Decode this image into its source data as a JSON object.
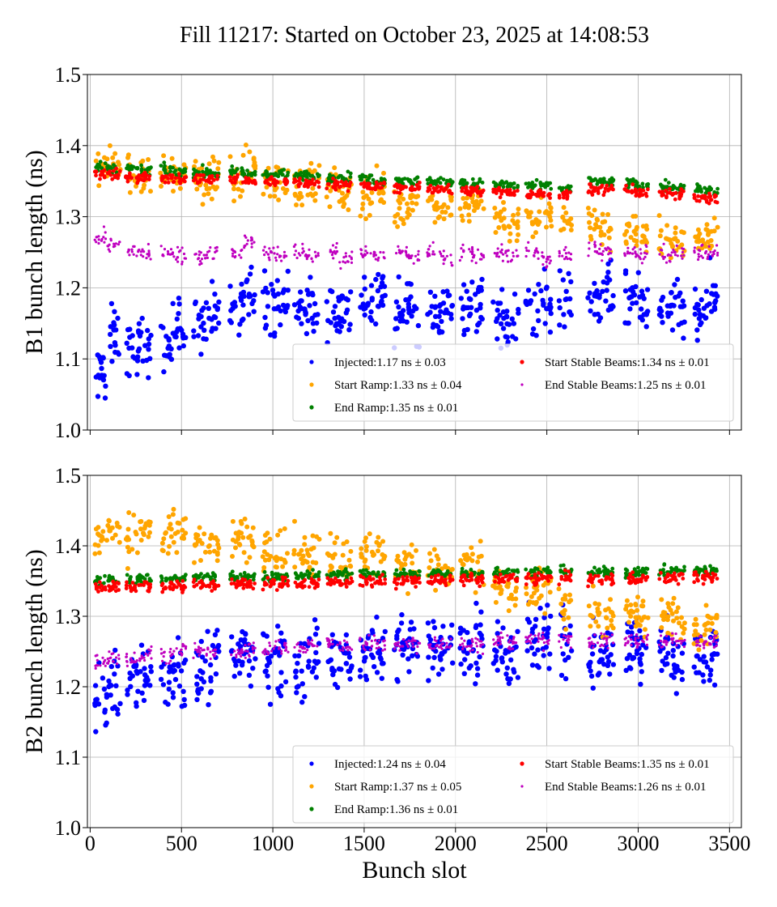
{
  "title": "Fill 11217: Started on October 23, 2025 at 14:08:53",
  "chart_data": [
    {
      "type": "scatter",
      "panel": "top",
      "xlabel": "",
      "ylabel": "B1 bunch length (ns)",
      "xlim": [
        -15,
        3565
      ],
      "ylim": [
        1.0,
        1.5
      ],
      "xticks": [
        "0",
        "500",
        "1000",
        "1500",
        "2000",
        "2500",
        "3000",
        "3500"
      ],
      "xtick_values": [
        0,
        500,
        1000,
        1500,
        2000,
        2500,
        3000,
        3500
      ],
      "yticks": [
        "1.0",
        "1.1",
        "1.2",
        "1.3",
        "1.4",
        "1.5"
      ],
      "ytick_values": [
        1.0,
        1.1,
        1.2,
        1.3,
        1.4,
        1.5
      ],
      "show_xtick_labels": false,
      "grid": true,
      "legend_position": "lower-right",
      "x": [
        60,
        130,
        230,
        300,
        420,
        490,
        600,
        670,
        800,
        870,
        980,
        1050,
        1150,
        1220,
        1330,
        1400,
        1510,
        1580,
        1700,
        1770,
        1880,
        1950,
        2060,
        2120,
        2240,
        2310,
        2420,
        2490,
        2600,
        2760,
        2830,
        2960,
        3020,
        3150,
        3220,
        3340,
        3400
      ],
      "series": [
        {
          "name": "Injected",
          "legend": "Injected:1.17 ns ± 0.03",
          "color": "#0000ff",
          "spread": 0.03,
          "y": [
            1.08,
            1.13,
            1.11,
            1.12,
            1.13,
            1.14,
            1.15,
            1.16,
            1.17,
            1.2,
            1.18,
            1.18,
            1.17,
            1.17,
            1.17,
            1.17,
            1.18,
            1.19,
            1.16,
            1.17,
            1.17,
            1.17,
            1.17,
            1.18,
            1.16,
            1.15,
            1.17,
            1.18,
            1.18,
            1.18,
            1.19,
            1.18,
            1.17,
            1.17,
            1.16,
            1.17,
            1.19
          ]
        },
        {
          "name": "Start Ramp",
          "legend": "Start Ramp:1.33 ns ± 0.04",
          "color": "#ffa500",
          "spread": 0.02,
          "y": [
            1.37,
            1.38,
            1.36,
            1.36,
            1.355,
            1.36,
            1.35,
            1.35,
            1.35,
            1.37,
            1.35,
            1.35,
            1.34,
            1.35,
            1.34,
            1.33,
            1.33,
            1.34,
            1.31,
            1.32,
            1.32,
            1.32,
            1.31,
            1.32,
            1.3,
            1.29,
            1.3,
            1.3,
            1.3,
            1.29,
            1.28,
            1.28,
            1.27,
            1.27,
            1.26,
            1.27,
            1.28
          ]
        },
        {
          "name": "End Ramp",
          "legend": "End Ramp:1.35 ns ± 0.01",
          "color": "#008000",
          "spread": 0.005,
          "y": [
            1.37,
            1.368,
            1.366,
            1.365,
            1.366,
            1.364,
            1.363,
            1.362,
            1.362,
            1.36,
            1.36,
            1.359,
            1.358,
            1.357,
            1.356,
            1.355,
            1.353,
            1.352,
            1.351,
            1.35,
            1.349,
            1.348,
            1.347,
            1.346,
            1.345,
            1.344,
            1.343,
            1.342,
            1.34,
            1.35,
            1.348,
            1.346,
            1.345,
            1.342,
            1.34,
            1.338,
            1.336
          ]
        },
        {
          "name": "Start Stable Beams",
          "legend": "Start Stable Beams:1.34 ns ± 0.01",
          "color": "#ff0000",
          "spread": 0.005,
          "y": [
            1.36,
            1.358,
            1.356,
            1.355,
            1.356,
            1.354,
            1.353,
            1.352,
            1.352,
            1.35,
            1.35,
            1.349,
            1.348,
            1.347,
            1.346,
            1.345,
            1.343,
            1.342,
            1.341,
            1.34,
            1.339,
            1.338,
            1.337,
            1.336,
            1.335,
            1.334,
            1.333,
            1.332,
            1.33,
            1.34,
            1.338,
            1.336,
            1.335,
            1.332,
            1.33,
            1.328,
            1.326
          ]
        },
        {
          "name": "End Stable Beams",
          "legend": "End Stable Beams:1.25 ns ± 0.01",
          "color": "#bf00bf",
          "spread": 0.008,
          "y": [
            1.27,
            1.26,
            1.25,
            1.25,
            1.25,
            1.245,
            1.245,
            1.25,
            1.25,
            1.265,
            1.25,
            1.245,
            1.25,
            1.245,
            1.25,
            1.24,
            1.25,
            1.245,
            1.25,
            1.245,
            1.25,
            1.24,
            1.25,
            1.245,
            1.25,
            1.245,
            1.25,
            1.24,
            1.245,
            1.255,
            1.25,
            1.25,
            1.245,
            1.245,
            1.25,
            1.25,
            1.25
          ]
        }
      ]
    },
    {
      "type": "scatter",
      "panel": "bottom",
      "xlabel": "Bunch slot",
      "ylabel": "B2 bunch length (ns)",
      "xlim": [
        -15,
        3565
      ],
      "ylim": [
        1.0,
        1.5
      ],
      "xticks": [
        "0",
        "500",
        "1000",
        "1500",
        "2000",
        "2500",
        "3000",
        "3500"
      ],
      "xtick_values": [
        0,
        500,
        1000,
        1500,
        2000,
        2500,
        3000,
        3500
      ],
      "yticks": [
        "1.0",
        "1.1",
        "1.2",
        "1.3",
        "1.4",
        "1.5"
      ],
      "ytick_values": [
        1.0,
        1.1,
        1.2,
        1.3,
        1.4,
        1.5
      ],
      "show_xtick_labels": true,
      "grid": true,
      "legend_position": "lower-right",
      "x": [
        60,
        130,
        230,
        300,
        420,
        490,
        600,
        670,
        800,
        870,
        980,
        1050,
        1150,
        1220,
        1330,
        1400,
        1510,
        1580,
        1700,
        1770,
        1880,
        1950,
        2060,
        2120,
        2240,
        2310,
        2420,
        2490,
        2600,
        2760,
        2830,
        2960,
        3020,
        3150,
        3220,
        3340,
        3400
      ],
      "series": [
        {
          "name": "Injected",
          "legend": "Injected:1.24 ns ± 0.04",
          "color": "#0000ff",
          "spread": 0.035,
          "y": [
            1.18,
            1.2,
            1.21,
            1.22,
            1.22,
            1.23,
            1.22,
            1.23,
            1.24,
            1.25,
            1.24,
            1.24,
            1.23,
            1.24,
            1.24,
            1.25,
            1.25,
            1.25,
            1.25,
            1.26,
            1.25,
            1.25,
            1.26,
            1.26,
            1.25,
            1.25,
            1.26,
            1.27,
            1.26,
            1.25,
            1.25,
            1.26,
            1.25,
            1.25,
            1.24,
            1.24,
            1.25
          ]
        },
        {
          "name": "Start Ramp",
          "legend": "Start Ramp:1.37 ns ± 0.05",
          "color": "#ffa500",
          "spread": 0.022,
          "y": [
            1.41,
            1.42,
            1.41,
            1.43,
            1.41,
            1.42,
            1.41,
            1.4,
            1.41,
            1.41,
            1.4,
            1.39,
            1.39,
            1.39,
            1.39,
            1.38,
            1.39,
            1.39,
            1.38,
            1.37,
            1.37,
            1.36,
            1.37,
            1.36,
            1.34,
            1.33,
            1.33,
            1.34,
            1.32,
            1.31,
            1.3,
            1.3,
            1.3,
            1.3,
            1.29,
            1.28,
            1.29
          ]
        },
        {
          "name": "End Ramp",
          "legend": "End Ramp:1.36 ns ± 0.01",
          "color": "#008000",
          "spread": 0.005,
          "y": [
            1.35,
            1.352,
            1.352,
            1.353,
            1.353,
            1.354,
            1.355,
            1.355,
            1.356,
            1.356,
            1.356,
            1.357,
            1.357,
            1.358,
            1.358,
            1.359,
            1.36,
            1.36,
            1.36,
            1.36,
            1.361,
            1.361,
            1.362,
            1.362,
            1.362,
            1.363,
            1.363,
            1.364,
            1.364,
            1.362,
            1.362,
            1.363,
            1.364,
            1.364,
            1.365,
            1.365,
            1.365
          ]
        },
        {
          "name": "Start Stable Beams",
          "legend": "Start Stable Beams:1.35 ns ± 0.01",
          "color": "#ff0000",
          "spread": 0.006,
          "y": [
            1.34,
            1.342,
            1.342,
            1.343,
            1.343,
            1.344,
            1.345,
            1.345,
            1.346,
            1.346,
            1.346,
            1.347,
            1.347,
            1.348,
            1.348,
            1.349,
            1.35,
            1.35,
            1.35,
            1.35,
            1.351,
            1.351,
            1.352,
            1.352,
            1.352,
            1.353,
            1.353,
            1.354,
            1.354,
            1.352,
            1.352,
            1.353,
            1.354,
            1.354,
            1.355,
            1.355,
            1.355
          ]
        },
        {
          "name": "End Stable Beams",
          "legend": "End Stable Beams:1.26 ns ± 0.01",
          "color": "#bf00bf",
          "spread": 0.008,
          "y": [
            1.235,
            1.24,
            1.24,
            1.245,
            1.245,
            1.25,
            1.25,
            1.25,
            1.25,
            1.255,
            1.255,
            1.255,
            1.255,
            1.26,
            1.26,
            1.26,
            1.26,
            1.26,
            1.26,
            1.26,
            1.26,
            1.26,
            1.26,
            1.26,
            1.265,
            1.265,
            1.265,
            1.265,
            1.265,
            1.265,
            1.265,
            1.265,
            1.265,
            1.265,
            1.265,
            1.265,
            1.265
          ]
        }
      ]
    }
  ]
}
